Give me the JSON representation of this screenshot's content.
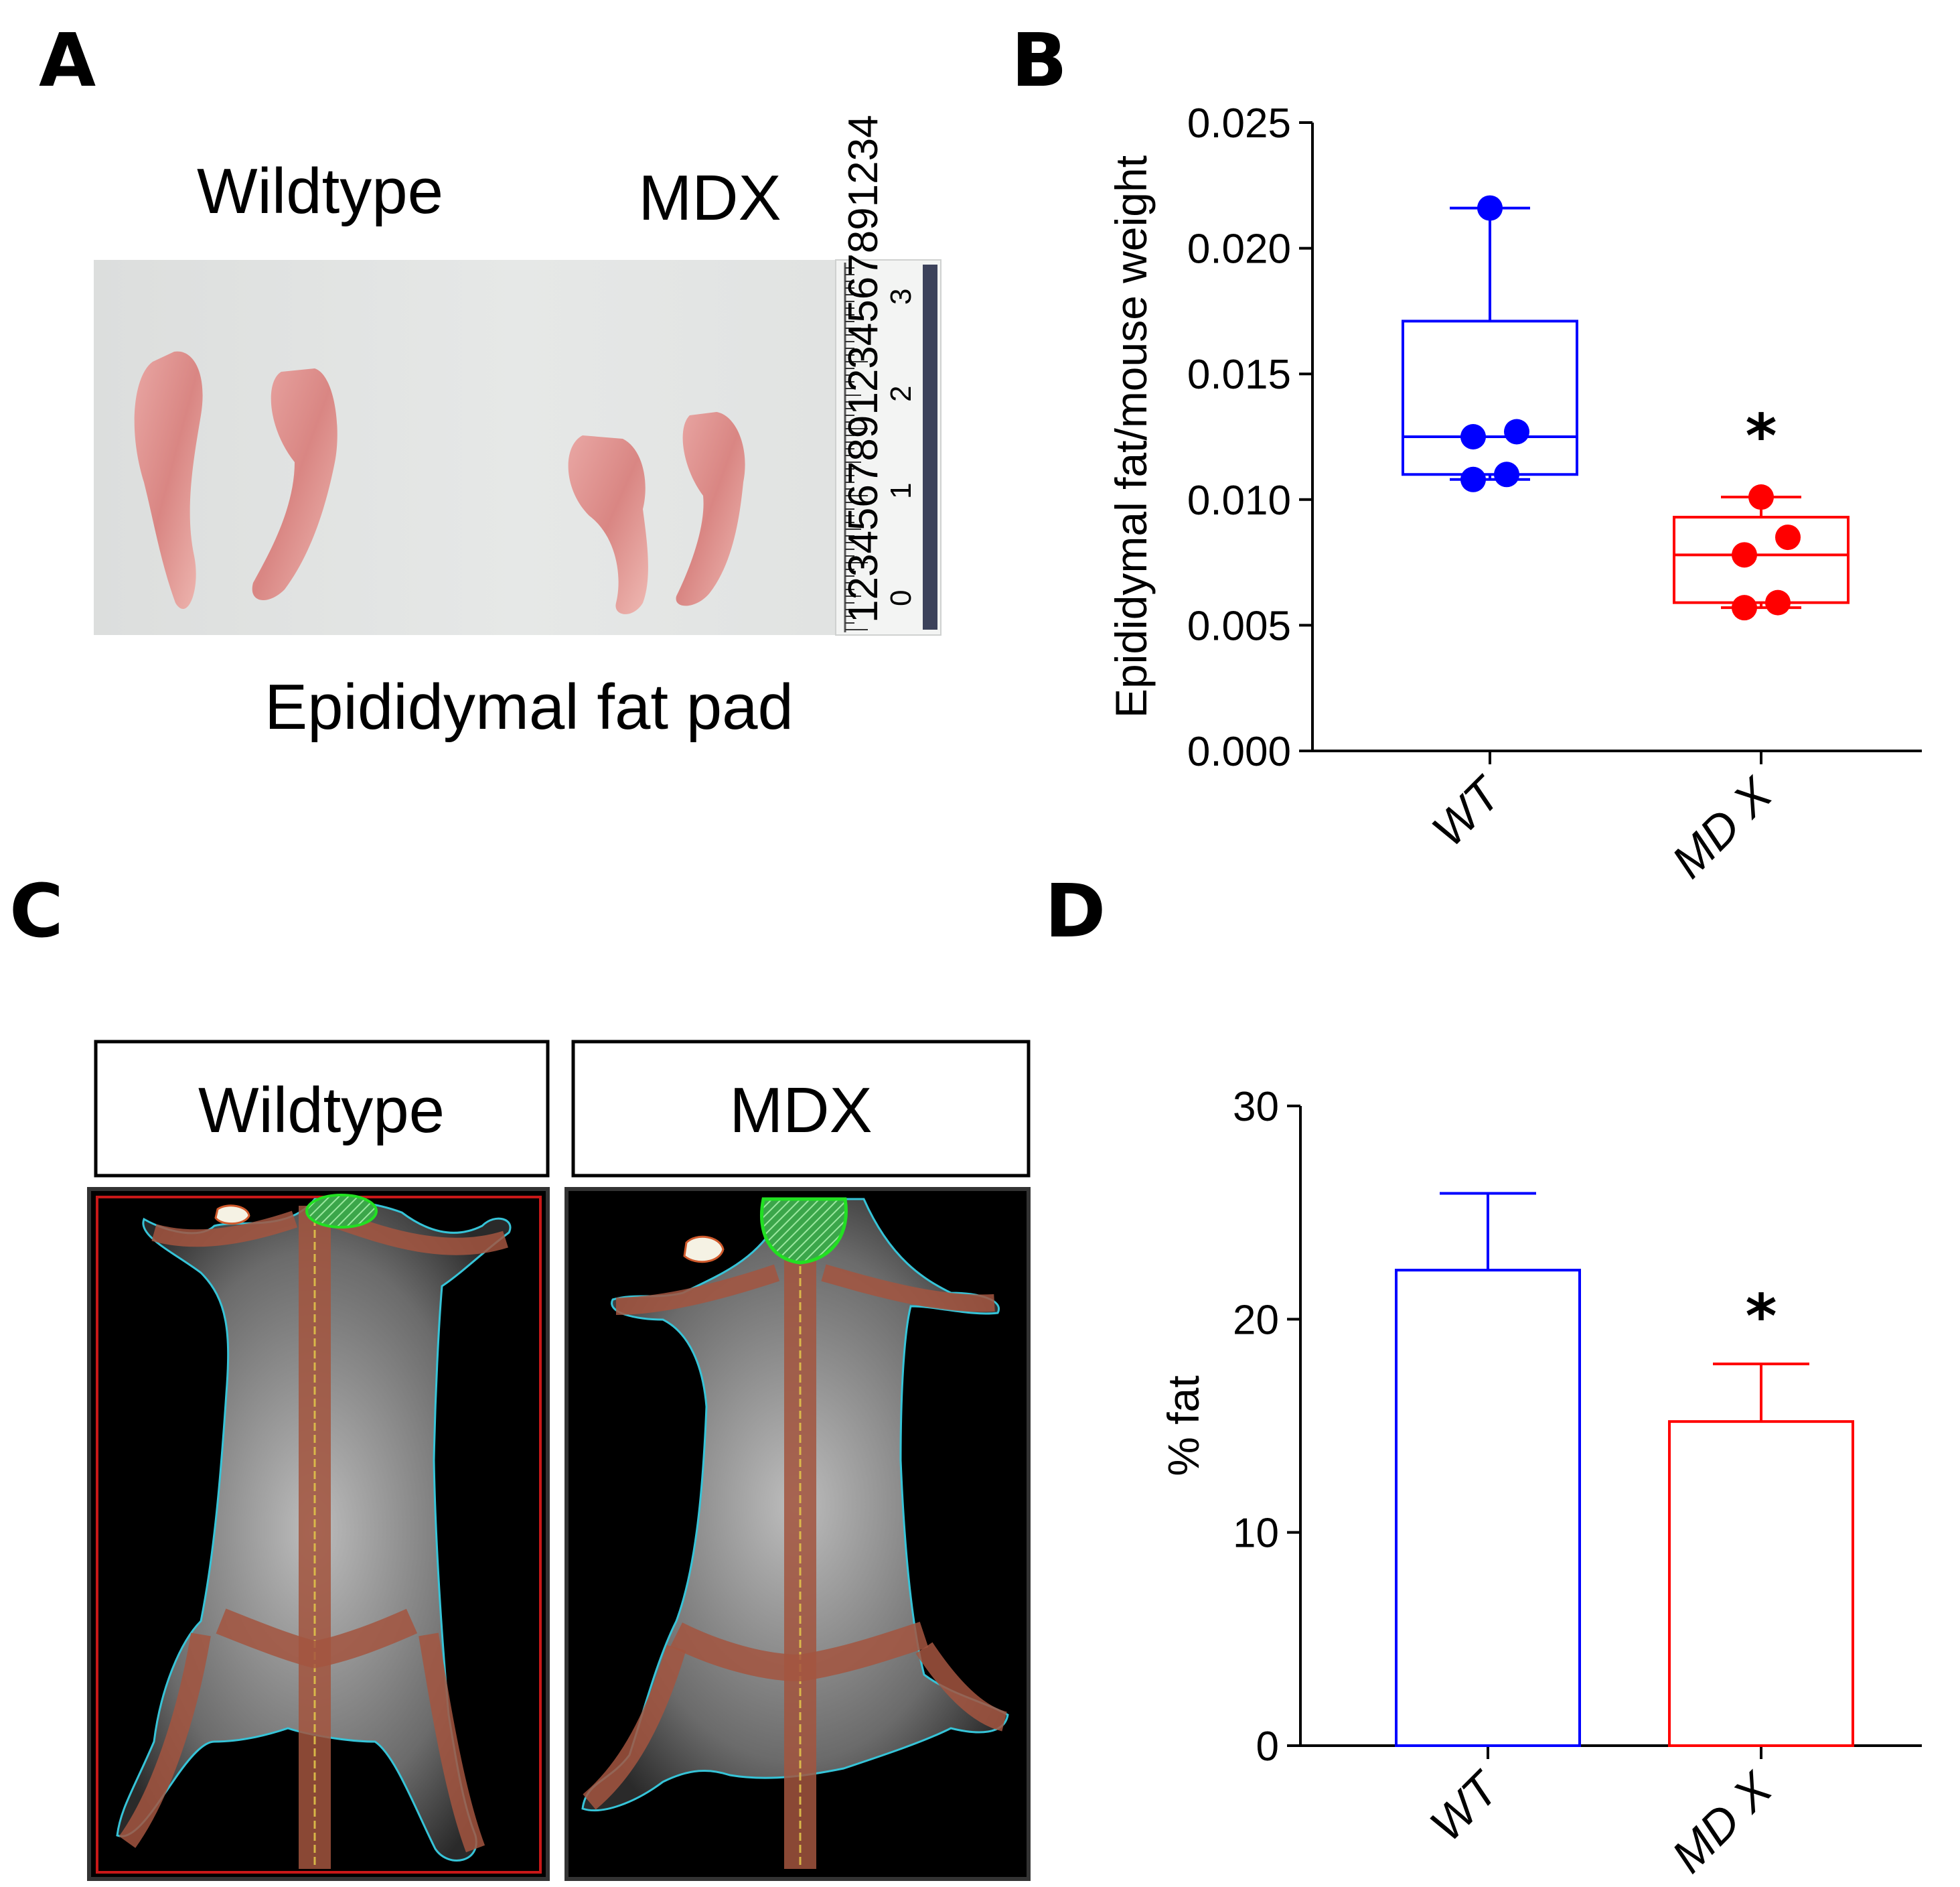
{
  "panel_labels": [
    "A",
    "B",
    "C",
    "D"
  ],
  "panel_a": {
    "group_labels": [
      "Wildtype",
      "MDX"
    ],
    "caption": "Epididymal fat pad",
    "ruler_text": "1234567891234567891234",
    "ruler_numbers": [
      "0",
      "1",
      "2",
      "3"
    ]
  },
  "panel_c": {
    "group_labels": [
      "Wildtype",
      "MDX"
    ]
  },
  "colors": {
    "wt": "#0000ff",
    "mdx": "#ff0000",
    "axis": "#000000"
  },
  "chart_data": [
    {
      "type": "box",
      "panel": "B",
      "ylabel": "Epididymal fat/mouse weight",
      "ylim": [
        0,
        0.025
      ],
      "yticks": [
        0.0,
        0.005,
        0.01,
        0.015,
        0.02,
        0.025
      ],
      "ytick_labels": [
        "0.000",
        "0.005",
        "0.010",
        "0.015",
        "0.020",
        "0.025"
      ],
      "categories": [
        "WT",
        "MD X"
      ],
      "boxes": [
        {
          "name": "WT",
          "min": 0.0108,
          "q1": 0.011,
          "median": 0.0125,
          "q3": 0.0171,
          "max": 0.0216,
          "points": [
            0.0216,
            0.0127,
            0.0125,
            0.011,
            0.0108
          ]
        },
        {
          "name": "MD X",
          "min": 0.0057,
          "q1": 0.0059,
          "median": 0.0078,
          "q3": 0.0093,
          "max": 0.0101,
          "points": [
            0.0101,
            0.0085,
            0.0078,
            0.0059,
            0.0057
          ]
        }
      ],
      "significance": [
        "",
        "*"
      ]
    },
    {
      "type": "bar",
      "panel": "D",
      "ylabel": "% fat",
      "ylim": [
        0,
        30
      ],
      "yticks": [
        0,
        10,
        20,
        30
      ],
      "ytick_labels": [
        "0",
        "10",
        "20",
        "30"
      ],
      "categories": [
        "WT",
        "MD X"
      ],
      "values": [
        22.3,
        15.2
      ],
      "errors": [
        3.6,
        2.7
      ],
      "significance": [
        "",
        "*"
      ]
    }
  ]
}
